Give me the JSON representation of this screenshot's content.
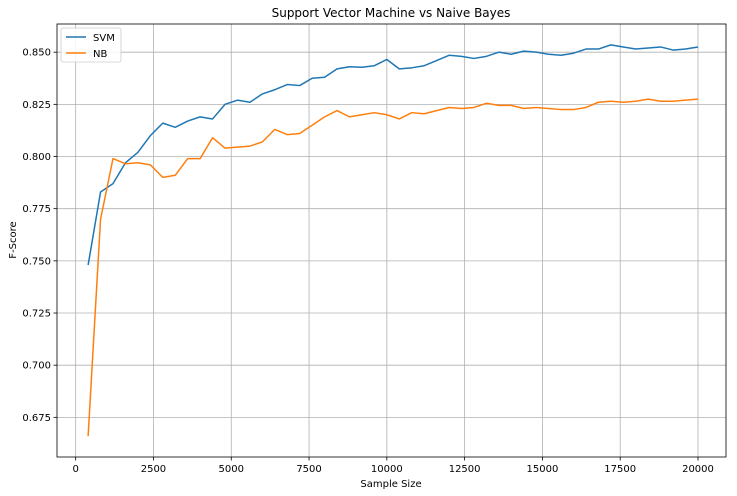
{
  "chart_data": {
    "type": "line",
    "title": "Support Vector Machine vs Naive Bayes",
    "xlabel": "Sample Size",
    "ylabel": "F-Score",
    "xlim": [
      -600,
      20900
    ],
    "ylim": [
      0.656,
      0.8635
    ],
    "xticks": [
      0,
      2500,
      5000,
      7500,
      10000,
      12500,
      15000,
      17500,
      20000
    ],
    "yticks": [
      0.675,
      0.7,
      0.725,
      0.75,
      0.775,
      0.8,
      0.825,
      0.85
    ],
    "xtick_labels": [
      "0",
      "2500",
      "5000",
      "7500",
      "10000",
      "12500",
      "15000",
      "17500",
      "20000"
    ],
    "ytick_labels": [
      "0.675",
      "0.700",
      "0.725",
      "0.750",
      "0.775",
      "0.800",
      "0.825",
      "0.850"
    ],
    "grid": true,
    "legend_position": "top-left",
    "x": [
      400,
      800,
      1200,
      1600,
      2000,
      2400,
      2800,
      3200,
      3600,
      4000,
      4400,
      4800,
      5200,
      5600,
      6000,
      6400,
      6800,
      7200,
      7600,
      8000,
      8400,
      8800,
      9200,
      9600,
      10000,
      10400,
      10800,
      11200,
      11600,
      12000,
      12400,
      12800,
      13200,
      13600,
      14000,
      14400,
      14800,
      15200,
      15600,
      16000,
      16400,
      16800,
      17200,
      17600,
      18000,
      18400,
      18800,
      19200,
      19600,
      20000
    ],
    "series": [
      {
        "name": "SVM",
        "color": "#1f77b4",
        "values": [
          0.748,
          0.783,
          0.787,
          0.797,
          0.802,
          0.81,
          0.816,
          0.814,
          0.817,
          0.819,
          0.818,
          0.825,
          0.827,
          0.826,
          0.83,
          0.832,
          0.8345,
          0.834,
          0.8375,
          0.838,
          0.842,
          0.843,
          0.8428,
          0.8435,
          0.8465,
          0.842,
          0.8425,
          0.8435,
          0.846,
          0.8485,
          0.848,
          0.847,
          0.848,
          0.85,
          0.849,
          0.8505,
          0.85,
          0.849,
          0.8485,
          0.8495,
          0.8515,
          0.8515,
          0.8535,
          0.8525,
          0.8515,
          0.852,
          0.8525,
          0.851,
          0.8515,
          0.8525
        ]
      },
      {
        "name": "NB",
        "color": "#ff7f0e",
        "values": [
          0.666,
          0.77,
          0.799,
          0.7965,
          0.797,
          0.796,
          0.79,
          0.791,
          0.799,
          0.799,
          0.809,
          0.804,
          0.8045,
          0.805,
          0.807,
          0.813,
          0.8105,
          0.811,
          0.815,
          0.819,
          0.822,
          0.819,
          0.82,
          0.821,
          0.82,
          0.818,
          0.821,
          0.8205,
          0.822,
          0.8235,
          0.823,
          0.8235,
          0.8255,
          0.8245,
          0.8245,
          0.823,
          0.8235,
          0.823,
          0.8225,
          0.8225,
          0.8235,
          0.826,
          0.8265,
          0.826,
          0.8265,
          0.8275,
          0.8265,
          0.8265,
          0.827,
          0.8275
        ]
      }
    ]
  }
}
